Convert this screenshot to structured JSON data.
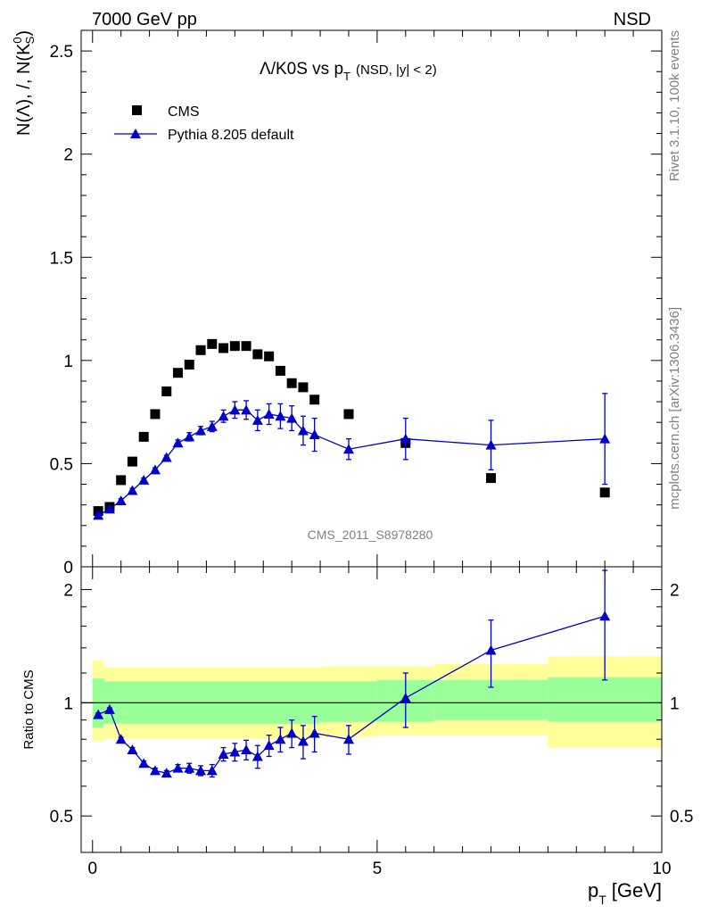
{
  "header": {
    "left": "7000 GeV pp",
    "right": "NSD"
  },
  "side_text": {
    "rivet": "Rivet 3.1.10,  100k events",
    "mcplots": "mcplots.cern.ch [arXiv:1306.3436]"
  },
  "watermark": "CMS_2011_S8978280",
  "chart_data": [
    {
      "type": "scatter",
      "title_main": "Λ/K0S vs p",
      "title_sub": "T",
      "title_tail": "(NSD, |y| < 2)",
      "ylabel": "N(Λ), /, N(K⁰S)",
      "ylabel_prefix": "N(Λ), /, N(K",
      "ylabel_sup": "0",
      "ylabel_sub": "S",
      "ylabel_suffix": ")",
      "xlim": [
        -0.2,
        10
      ],
      "ylim": [
        0,
        2.6
      ],
      "yticks": [
        0,
        0.5,
        1,
        1.5,
        2,
        2.5
      ],
      "ytick_labels": [
        "0",
        "0.5",
        "1",
        "1.5",
        "2",
        "2.5"
      ],
      "legend": {
        "position": "top-left",
        "entries": [
          "CMS",
          "Pythia 8.205 default"
        ]
      },
      "series": [
        {
          "name": "CMS",
          "marker": "square",
          "color": "#000000",
          "x": [
            0.1,
            0.3,
            0.5,
            0.7,
            0.9,
            1.1,
            1.3,
            1.5,
            1.7,
            1.9,
            2.1,
            2.3,
            2.5,
            2.7,
            2.9,
            3.1,
            3.3,
            3.5,
            3.7,
            3.9,
            4.5,
            5.5,
            7.0,
            9.0
          ],
          "y": [
            0.27,
            0.29,
            0.42,
            0.51,
            0.63,
            0.74,
            0.85,
            0.94,
            0.98,
            1.05,
            1.08,
            1.06,
            1.07,
            1.07,
            1.03,
            1.02,
            0.95,
            0.89,
            0.87,
            0.81,
            0.74,
            0.6,
            0.43,
            0.36
          ]
        },
        {
          "name": "Pythia 8.205 default",
          "marker": "triangle",
          "color": "#0000cc",
          "x": [
            0.1,
            0.3,
            0.5,
            0.7,
            0.9,
            1.1,
            1.3,
            1.5,
            1.7,
            1.9,
            2.1,
            2.3,
            2.5,
            2.7,
            2.9,
            3.1,
            3.3,
            3.5,
            3.7,
            3.9,
            4.5,
            5.5,
            7.0,
            9.0
          ],
          "y": [
            0.25,
            0.28,
            0.32,
            0.37,
            0.42,
            0.47,
            0.53,
            0.6,
            0.63,
            0.66,
            0.68,
            0.73,
            0.76,
            0.76,
            0.71,
            0.74,
            0.73,
            0.72,
            0.66,
            0.64,
            0.57,
            0.62,
            0.59,
            0.62
          ],
          "yerr": [
            0.01,
            0.01,
            0.01,
            0.01,
            0.01,
            0.01,
            0.01,
            0.015,
            0.02,
            0.02,
            0.025,
            0.03,
            0.04,
            0.045,
            0.05,
            0.05,
            0.06,
            0.06,
            0.07,
            0.08,
            0.05,
            0.1,
            0.12,
            0.22
          ]
        }
      ]
    },
    {
      "type": "scatter",
      "ylabel": "Ratio to CMS",
      "xlabel": "p",
      "xlabel_sub": "T",
      "xlabel_tail": "[GeV]",
      "xlim": [
        -0.2,
        10
      ],
      "ylim": [
        0.4,
        2.3
      ],
      "ylog": true,
      "xticks": [
        0,
        5,
        10
      ],
      "xtick_labels": [
        "0",
        "5",
        "10"
      ],
      "yticks": [
        0.5,
        1,
        2
      ],
      "ytick_labels": [
        "0.5",
        "1",
        "2"
      ],
      "reference_line": 1,
      "bands": [
        {
          "x0": 0.0,
          "x1": 0.2,
          "inner": [
            0.86,
            1.16
          ],
          "outer": [
            0.79,
            1.3
          ]
        },
        {
          "x0": 0.2,
          "x1": 4.0,
          "inner": [
            0.88,
            1.14
          ],
          "outer": [
            0.8,
            1.24
          ]
        },
        {
          "x0": 4.0,
          "x1": 5.0,
          "inner": [
            0.89,
            1.14
          ],
          "outer": [
            0.81,
            1.25
          ]
        },
        {
          "x0": 5.0,
          "x1": 6.0,
          "inner": [
            0.89,
            1.15
          ],
          "outer": [
            0.82,
            1.25
          ]
        },
        {
          "x0": 6.0,
          "x1": 8.0,
          "inner": [
            0.9,
            1.15
          ],
          "outer": [
            0.82,
            1.27
          ]
        },
        {
          "x0": 8.0,
          "x1": 10.0,
          "inner": [
            0.89,
            1.17
          ],
          "outer": [
            0.76,
            1.33
          ]
        }
      ],
      "band_colors": {
        "outer": "#ffff99",
        "inner": "#99ff99"
      },
      "series": [
        {
          "name": "Pythia 8.205 default / CMS",
          "color": "#0000cc",
          "x": [
            0.1,
            0.3,
            0.5,
            0.7,
            0.9,
            1.1,
            1.3,
            1.5,
            1.7,
            1.9,
            2.1,
            2.3,
            2.5,
            2.7,
            2.9,
            3.1,
            3.3,
            3.5,
            3.7,
            3.9,
            4.5,
            5.5,
            7.0,
            9.0
          ],
          "y": [
            0.93,
            0.96,
            0.8,
            0.75,
            0.69,
            0.66,
            0.65,
            0.67,
            0.67,
            0.66,
            0.66,
            0.73,
            0.74,
            0.75,
            0.72,
            0.77,
            0.8,
            0.83,
            0.79,
            0.83,
            0.8,
            1.03,
            1.38,
            1.7
          ],
          "yerr": [
            0.01,
            0.01,
            0.01,
            0.01,
            0.01,
            0.01,
            0.01,
            0.015,
            0.02,
            0.02,
            0.025,
            0.03,
            0.04,
            0.045,
            0.05,
            0.05,
            0.06,
            0.07,
            0.08,
            0.09,
            0.07,
            0.17,
            0.28,
            0.55
          ]
        }
      ]
    }
  ]
}
